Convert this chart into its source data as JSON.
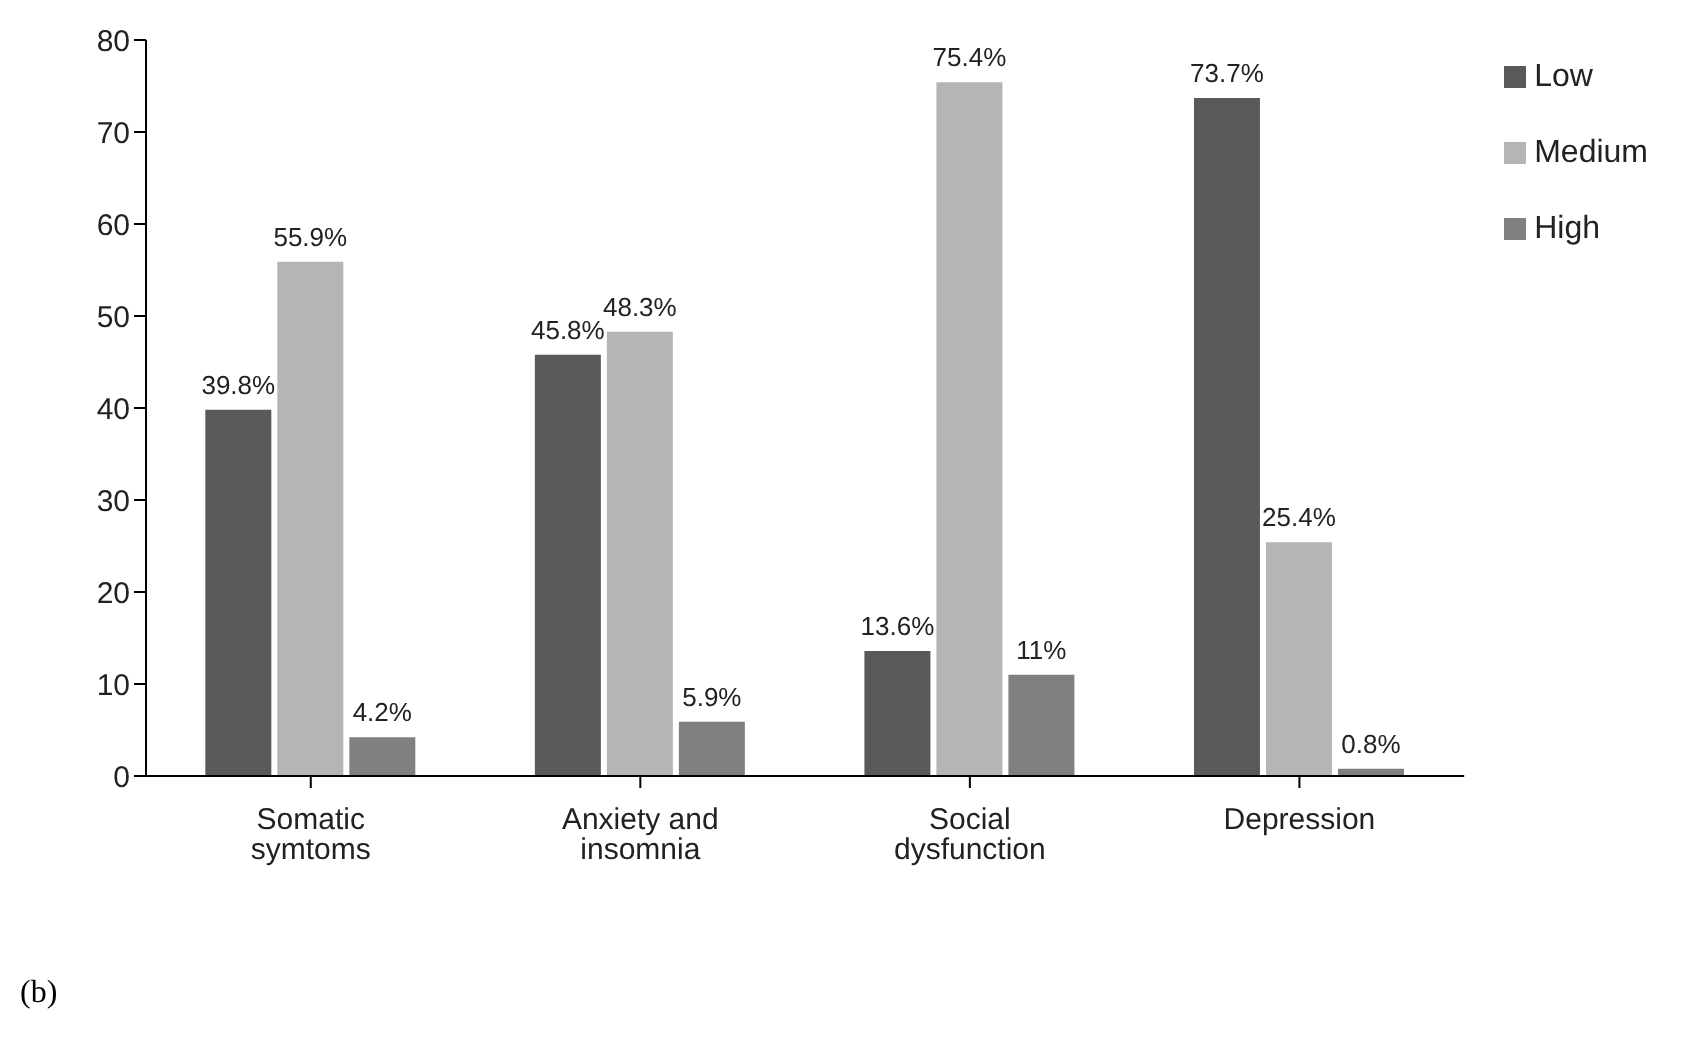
{
  "chart_data": {
    "type": "bar",
    "categories": [
      "Somatic symtoms",
      "Anxiety and insomnia",
      "Social dysfunction",
      "Depression"
    ],
    "series": [
      {
        "name": "Low",
        "color": "#595959",
        "values": [
          39.8,
          45.8,
          13.6,
          73.7
        ],
        "value_labels": [
          "39.8%",
          "45.8%",
          "13.6%",
          "73.7%"
        ]
      },
      {
        "name": "Medium",
        "color": "#b5b5b5",
        "values": [
          55.9,
          48.3,
          75.4,
          25.4
        ],
        "value_labels": [
          "55.9%",
          "48.3%",
          "75.4%",
          "25.4%"
        ]
      },
      {
        "name": "High",
        "color": "#808080",
        "values": [
          4.2,
          5.9,
          11,
          0.8
        ],
        "value_labels": [
          "4.2%",
          "5.9%",
          "11%",
          "0.8%"
        ]
      }
    ],
    "ylim": [
      0,
      80
    ],
    "yticks": [
      0,
      10,
      20,
      30,
      40,
      50,
      60,
      70,
      80
    ],
    "grid": false,
    "legend": "top right",
    "annotations": [
      "(b)"
    ]
  }
}
